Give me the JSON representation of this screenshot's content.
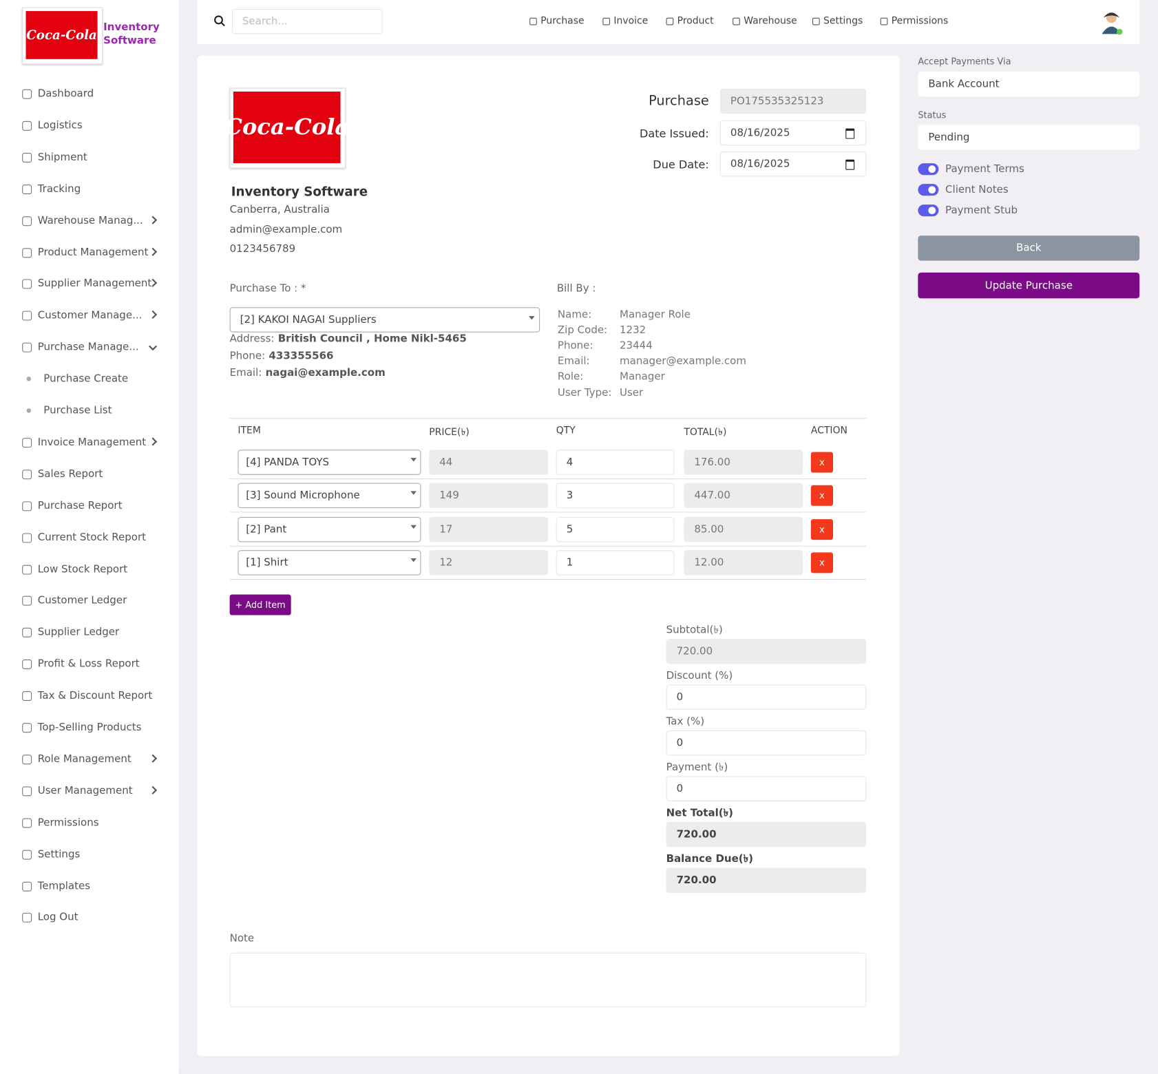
{
  "logo_text": "Coca-Cola",
  "brand": "Inventory Software",
  "search_placeholder": "Search...",
  "top_nav": [
    "Purchase",
    "Invoice",
    "Product",
    "Warehouse",
    "Settings",
    "Permissions"
  ],
  "sidebar": [
    {
      "label": "Dashboard"
    },
    {
      "label": "Logistics"
    },
    {
      "label": "Shipment"
    },
    {
      "label": "Tracking"
    },
    {
      "label": "Warehouse Manag...",
      "arrow": "right"
    },
    {
      "label": "Product Management",
      "arrow": "right"
    },
    {
      "label": "Supplier Management",
      "arrow": "right"
    },
    {
      "label": "Customer Manage...",
      "arrow": "right"
    },
    {
      "label": "Purchase Manage...",
      "arrow": "down"
    },
    {
      "label": "Purchase Create",
      "sub": true
    },
    {
      "label": "Purchase List",
      "sub": true
    },
    {
      "label": "Invoice Management",
      "arrow": "right"
    },
    {
      "label": "Sales Report"
    },
    {
      "label": "Purchase Report"
    },
    {
      "label": "Current Stock Report"
    },
    {
      "label": "Low Stock Report"
    },
    {
      "label": "Customer Ledger"
    },
    {
      "label": "Supplier Ledger"
    },
    {
      "label": "Profit & Loss Report"
    },
    {
      "label": "Tax & Discount Report"
    },
    {
      "label": "Top-Selling Products"
    },
    {
      "label": "Role Management",
      "arrow": "right"
    },
    {
      "label": "User Management",
      "arrow": "right"
    },
    {
      "label": "Permissions"
    },
    {
      "label": "Settings"
    },
    {
      "label": "Templates"
    },
    {
      "label": "Log Out"
    }
  ],
  "company": {
    "name": "Inventory Software",
    "address": "Canberra, Australia",
    "email": "admin@example.com",
    "phone": "0123456789"
  },
  "purchase": {
    "label": "Purchase",
    "number": "PO175535325123",
    "date_issued_label": "Date Issued:",
    "date_issued": "08/16/2025",
    "due_date_label": "Due Date:",
    "due_date": "08/16/2025"
  },
  "purchase_to": {
    "label": "Purchase To : *",
    "supplier": "[2] KAKOI NAGAI Suppliers",
    "address_label": "Address:",
    "address": "British Council , Home Nikl-5465",
    "phone_label": "Phone:",
    "phone": "433355566",
    "email_label": "Email:",
    "email": "nagai@example.com"
  },
  "bill_by": {
    "label": "Bill By :",
    "fields": [
      [
        "Name:",
        "Manager Role"
      ],
      [
        "Zip Code:",
        "1232"
      ],
      [
        "Phone:",
        "23444"
      ],
      [
        "Email:",
        "manager@example.com"
      ],
      [
        "Role:",
        "Manager"
      ],
      [
        "User Type:",
        "User"
      ]
    ]
  },
  "table": {
    "headers": [
      "ITEM",
      "PRICE(৳)",
      "QTY",
      "TOTAL(৳)",
      "ACTION"
    ],
    "rows": [
      [
        "[4] PANDA TOYS",
        "44",
        "4",
        "176.00",
        "x"
      ],
      [
        "[3] Sound Microphone",
        "149",
        "3",
        "447.00",
        "x"
      ],
      [
        "[2] Pant",
        "17",
        "5",
        "85.00",
        "x"
      ],
      [
        "[1] Shirt",
        "12",
        "1",
        "12.00",
        "x"
      ]
    ]
  },
  "add_item": "+ Add Item",
  "summary": [
    {
      "label": "Subtotal(৳)",
      "value": "720.00"
    },
    {
      "label": "Discount (%)",
      "value": "0"
    },
    {
      "label": "Tax (%)",
      "value": "0"
    },
    {
      "label": "Payment (৳)",
      "value": "0"
    },
    {
      "label": "Net Total(৳)",
      "value": "720.00"
    },
    {
      "label": "Balance Due(৳)",
      "value": "720.00"
    }
  ],
  "note_label": "Note",
  "settings": {
    "accept_label": "Accept Payments Via",
    "accept_value": "Bank Account",
    "status_label": "Status",
    "status_value": "Pending",
    "toggles": [
      "Payment Terms",
      "Client Notes",
      "Payment Stub"
    ],
    "back": "Back",
    "update": "Update Purchase"
  }
}
